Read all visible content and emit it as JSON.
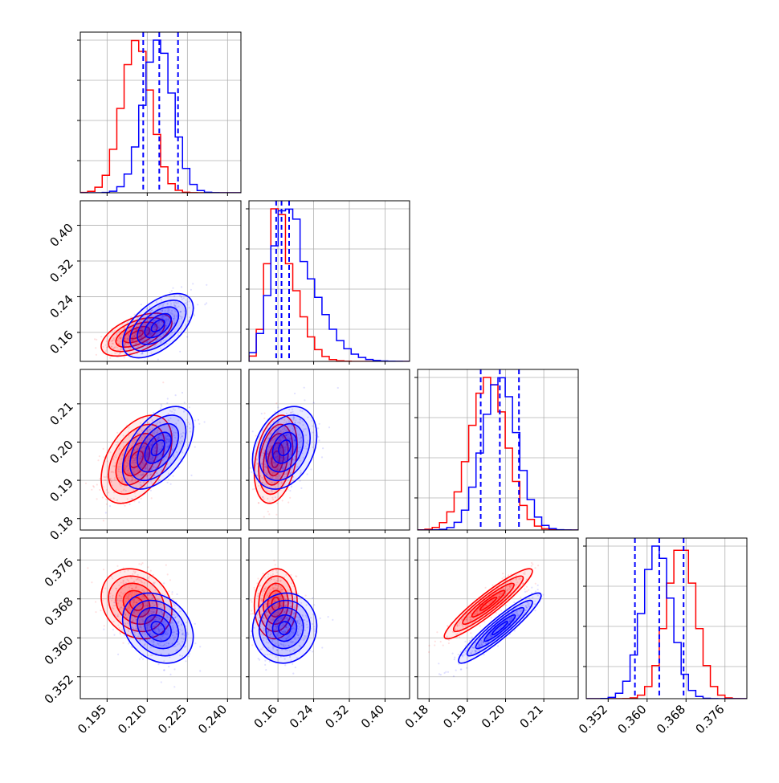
{
  "colors": {
    "red": "#ff0000",
    "blue": "#0000ff"
  },
  "chart_data": {
    "type": "corner",
    "grid": true,
    "series": [
      {
        "color": "#ff0000"
      },
      {
        "color": "#0000ff"
      }
    ],
    "parameters": [
      {
        "range": [
          0.185,
          0.245
        ],
        "ticks": [
          "0.195",
          "0.210",
          "0.225",
          "0.240"
        ],
        "tick_values": [
          0.195,
          0.21,
          0.225,
          0.24
        ],
        "mean": [
          0.206,
          0.214
        ],
        "sd": [
          0.0055,
          0.0055
        ],
        "quantiles": [
          0.2085,
          0.2145,
          0.2215
        ]
      },
      {
        "range": [
          0.095,
          0.455
        ],
        "ticks": [
          "0.16",
          "0.24",
          "0.32",
          "0.40"
        ],
        "tick_values": [
          0.16,
          0.24,
          0.32,
          0.4
        ],
        "mean": [
          0.155,
          0.175
        ],
        "sd": [
          0.02,
          0.03
        ],
        "quantiles": [
          0.156,
          0.168,
          0.185
        ]
      },
      {
        "range": [
          0.177,
          0.219
        ],
        "ticks": [
          "0.18",
          "0.19",
          "0.20",
          "0.21"
        ],
        "tick_values": [
          0.18,
          0.19,
          0.2,
          0.21
        ],
        "mean": [
          0.1955,
          0.1985
        ],
        "sd": [
          0.0048,
          0.0045
        ],
        "quantiles": [
          0.1935,
          0.1985,
          0.2035
        ]
      },
      {
        "range": [
          0.3475,
          0.3805
        ],
        "ticks": [
          "0.352",
          "0.360",
          "0.368",
          "0.376"
        ],
        "tick_values": [
          0.352,
          0.36,
          0.368,
          0.376
        ],
        "mean": [
          0.367,
          0.362
        ],
        "sd": [
          0.003,
          0.003
        ],
        "quantiles": [
          0.3575,
          0.3625,
          0.3675
        ]
      }
    ],
    "correlations": [
      {
        "pair": [
          0,
          1
        ],
        "rho": [
          0.55,
          0.55
        ]
      },
      {
        "pair": [
          0,
          2
        ],
        "rho": [
          0.45,
          0.5
        ]
      },
      {
        "pair": [
          1,
          2
        ],
        "rho": [
          0.3,
          0.3
        ]
      },
      {
        "pair": [
          0,
          3
        ],
        "rho": [
          -0.2,
          -0.25
        ]
      },
      {
        "pair": [
          1,
          3
        ],
        "rho": [
          0.05,
          0.05
        ]
      },
      {
        "pair": [
          2,
          3
        ],
        "rho": [
          0.93,
          0.93
        ]
      }
    ],
    "quantile_line_color": "#0000ff",
    "quantile_line_style": "dashed"
  }
}
